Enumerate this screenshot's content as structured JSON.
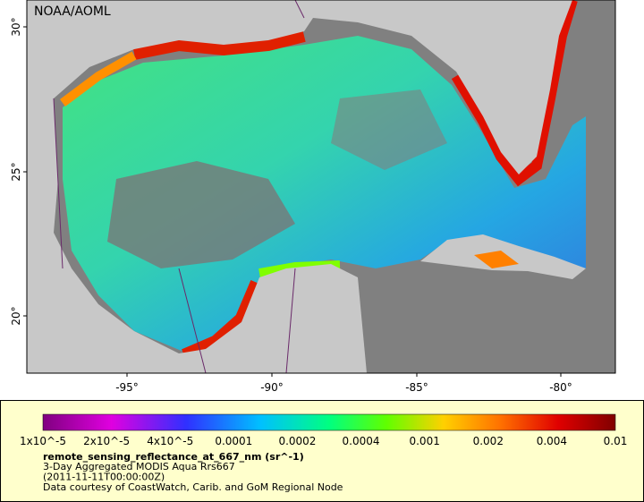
{
  "map": {
    "credit": "NOAA/AOML",
    "lat_labels": [
      "30°",
      "25°",
      "20°"
    ],
    "lon_labels": [
      "-95°",
      "-90°",
      "-85°",
      "-80°"
    ]
  },
  "colorbar": {
    "labels": [
      "1x10^-5",
      "2x10^-5",
      "4x10^-5",
      "0.0001",
      "0.0002",
      "0.0004",
      "0.001",
      "0.002",
      "0.004",
      "0.01"
    ],
    "title": "remote_sensing_reflectance_at_667_nm (sr^-1)",
    "lines": [
      "3-Day Aggregated MODIS Aqua Rrs667",
      "(2011-11-11T00:00:00Z)",
      "Data courtesy of CoastWatch, Carib. and GoM Regional Node"
    ]
  }
}
